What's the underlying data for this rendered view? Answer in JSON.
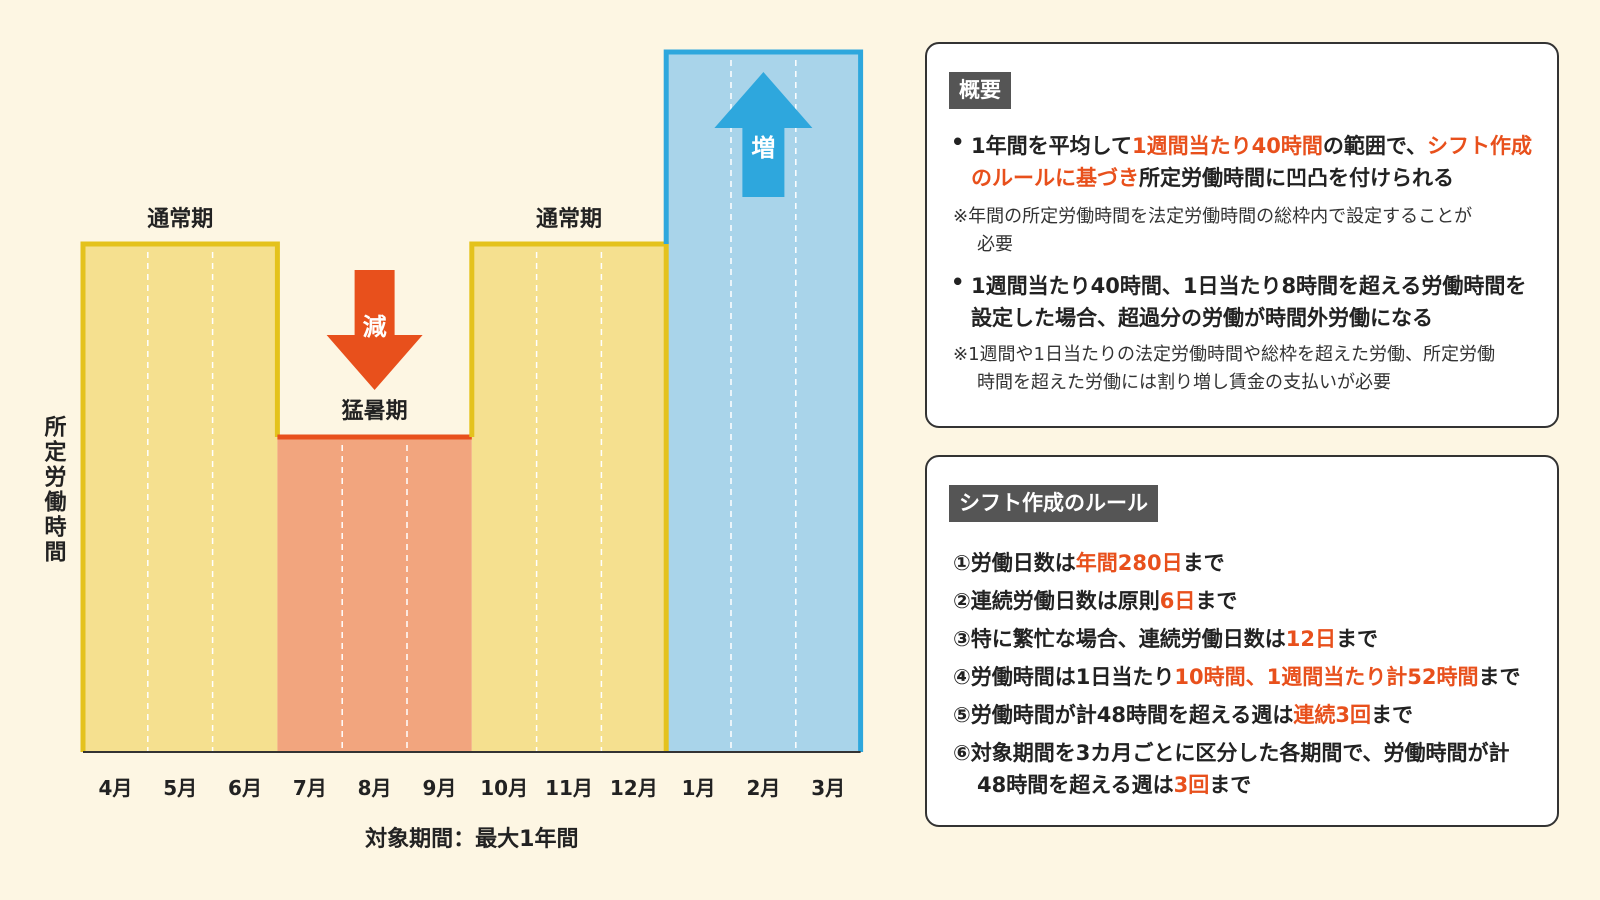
{
  "colors": {
    "background": "#fdf6e3",
    "normal_fill": "#f5e08f",
    "normal_border": "#e4c21c",
    "summer_fill": "#f2a57e",
    "summer_border": "#e8501c",
    "winter_fill": "#a9d4ea",
    "winter_border": "#2ea7dd",
    "accent_red": "#e8501c",
    "accent_blue": "#2ea7dd"
  },
  "chart_data": {
    "type": "bar",
    "categories": [
      "4月",
      "5月",
      "6月",
      "7月",
      "8月",
      "9月",
      "10月",
      "11月",
      "12月",
      "1月",
      "2月",
      "3月"
    ],
    "values": [
      2,
      2,
      2,
      1,
      1,
      1,
      2,
      2,
      2,
      3,
      3,
      3
    ],
    "ylim": [
      0,
      3
    ],
    "ylabel": "所定労働時間",
    "xlabel": "対象期間：最大1年間",
    "periods": [
      {
        "label": "通常期",
        "months": [
          "4月",
          "5月",
          "6月"
        ],
        "level": "normal"
      },
      {
        "label": "猛暑期",
        "months": [
          "7月",
          "8月",
          "9月"
        ],
        "level": "low"
      },
      {
        "label": "通常期",
        "months": [
          "10月",
          "11月",
          "12月"
        ],
        "level": "normal"
      },
      {
        "label": "",
        "months": [
          "1月",
          "2月",
          "3月"
        ],
        "level": "high"
      }
    ],
    "arrows": [
      {
        "label": "減",
        "direction": "down"
      },
      {
        "label": "増",
        "direction": "up"
      }
    ]
  },
  "overview": {
    "title": "概要",
    "bullet": "•",
    "lines": [
      [
        {
          "t": "1年間を平均して"
        },
        {
          "t": "1週間当たり40時間",
          "hl": true
        },
        {
          "t": "の範囲で、"
        },
        {
          "t": "シフト作成",
          "hl": true
        }
      ],
      [
        {
          "t": "のルールに基づき",
          "hl": true
        },
        {
          "t": "所定労働時間に凹凸を付けられる"
        }
      ],
      [
        {
          "t": "※年間の所定労働時間を法定労働時間の総枠内で設定することが"
        }
      ],
      [
        {
          "t": "必要"
        }
      ],
      [
        {
          "t": "1週間当たり40時間、1日当たり8時間を超える労働時間を"
        }
      ],
      [
        {
          "t": "設定した場合、超過分の労働が時間外労働になる"
        }
      ],
      [
        {
          "t": "※1週間や1日当たりの法定労働時間や総枠を超えた労働、所定労働"
        }
      ],
      [
        {
          "t": "時間を超えた労働には割り増し賃金の支払いが必要"
        }
      ]
    ]
  },
  "rules": {
    "title": "シフト作成のルール",
    "lines": [
      [
        {
          "t": "①労働日数は"
        },
        {
          "t": "年間280日",
          "hl": true
        },
        {
          "t": "まで"
        }
      ],
      [
        {
          "t": "②連続労働日数は原則"
        },
        {
          "t": "6日",
          "hl": true
        },
        {
          "t": "まで"
        }
      ],
      [
        {
          "t": "③特に繁忙な場合、連続労働日数は"
        },
        {
          "t": "12日",
          "hl": true
        },
        {
          "t": "まで"
        }
      ],
      [
        {
          "t": "④労働時間は1日当たり"
        },
        {
          "t": "10時間、1週間当たり計52時間",
          "hl": true
        },
        {
          "t": "まで"
        }
      ],
      [
        {
          "t": "⑤労働時間が計48時間を超える週は"
        },
        {
          "t": "連続3回",
          "hl": true
        },
        {
          "t": "まで"
        }
      ],
      [
        {
          "t": "⑥対象期間を3カ月ごとに区分した各期間で、労働時間が計"
        }
      ],
      [
        {
          "t": "48時間を超える週は"
        },
        {
          "t": "3回",
          "hl": true
        },
        {
          "t": "まで"
        }
      ]
    ]
  }
}
